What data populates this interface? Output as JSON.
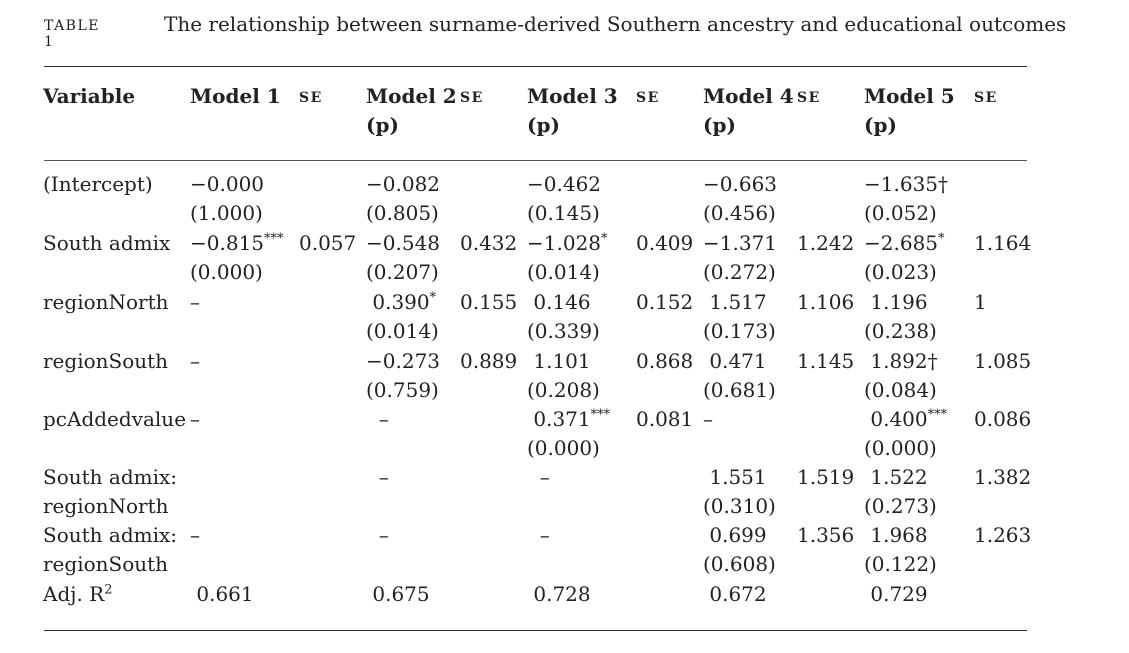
{
  "table": {
    "label": "TABLE 1",
    "caption": "The relationship between surname-derived Southern ancestry and educational outcomes",
    "headers": [
      {
        "key": "variable",
        "text": "Variable"
      },
      {
        "key": "m1",
        "text": "Model 1"
      },
      {
        "key": "se1",
        "text": "SE"
      },
      {
        "key": "m2",
        "text": "Model 2\n(p)"
      },
      {
        "key": "se2",
        "text": "SE"
      },
      {
        "key": "m3",
        "text": "Model 3\n(p)"
      },
      {
        "key": "se3",
        "text": "SE"
      },
      {
        "key": "m4",
        "text": "Model 4\n(p)"
      },
      {
        "key": "se4",
        "text": "SE"
      },
      {
        "key": "m5",
        "text": "Model 5\n(p)"
      },
      {
        "key": "se5",
        "text": "SE"
      }
    ],
    "rows": [
      {
        "variable": "(Intercept)",
        "m1": "−0.000\n(1.000)",
        "se1": "",
        "m2": "−0.082\n(0.805)",
        "se2": "",
        "m3": "−0.462\n(0.145)",
        "se3": "",
        "m4": "−0.663\n(0.456)",
        "se4": "",
        "m5": "−1.635†\n(0.052)",
        "se5": ""
      },
      {
        "variable": "South admix",
        "m1": "−0.815***\n(0.000)",
        "se1": "0.057",
        "m2": "−0.548\n(0.207)",
        "se2": "0.432",
        "m3": "−1.028*\n(0.014)",
        "se3": "0.409",
        "m4": "−1.371\n(0.272)",
        "se4": "1.242",
        "m5": "−2.685*\n(0.023)",
        "se5": "1.164"
      },
      {
        "variable": "regionNorth",
        "m1": "–",
        "se1": "",
        "m2": " 0.390*\n(0.014)",
        "se2": "0.155",
        "m3": " 0.146\n(0.339)",
        "se3": "0.152",
        "m4": " 1.517\n(0.173)",
        "se4": "1.106",
        "m5": " 1.196\n(0.238)",
        "se5": "1"
      },
      {
        "variable": "regionSouth",
        "m1": "–",
        "se1": "",
        "m2": "−0.273\n(0.759)",
        "se2": "0.889",
        "m3": " 1.101\n(0.208)",
        "se3": "0.868",
        "m4": " 0.471\n(0.681)",
        "se4": "1.145",
        "m5": " 1.892†\n(0.084)",
        "se5": "1.085"
      },
      {
        "variable": "pcAddedvalue",
        "m1": "–",
        "se1": "",
        "m2": "  –",
        "se2": "",
        "m3": " 0.371***\n(0.000)",
        "se3": "0.081",
        "m4": "–",
        "se4": "",
        "m5": " 0.400***\n(0.000)",
        "se5": "0.086"
      },
      {
        "variable": "South admix:\nregionNorth",
        "m1": "",
        "se1": "",
        "m2": "  –",
        "se2": "",
        "m3": "  –",
        "se3": "",
        "m4": " 1.551\n(0.310)",
        "se4": "1.519",
        "m5": " 1.522\n(0.273)",
        "se5": "1.382"
      },
      {
        "variable": "South admix:\nregionSouth",
        "m1": "–",
        "se1": "",
        "m2": "  –",
        "se2": "",
        "m3": "  –",
        "se3": "",
        "m4": " 0.699\n(0.608)",
        "se4": "1.356",
        "m5": " 1.968\n(0.122)",
        "se5": "1.263"
      },
      {
        "variable": "Adj. R2",
        "m1": " 0.661",
        "se1": "",
        "m2": " 0.675",
        "se2": "",
        "m3": " 0.728",
        "se3": "",
        "m4": " 0.672",
        "se4": "",
        "m5": " 0.729",
        "se5": ""
      }
    ]
  }
}
